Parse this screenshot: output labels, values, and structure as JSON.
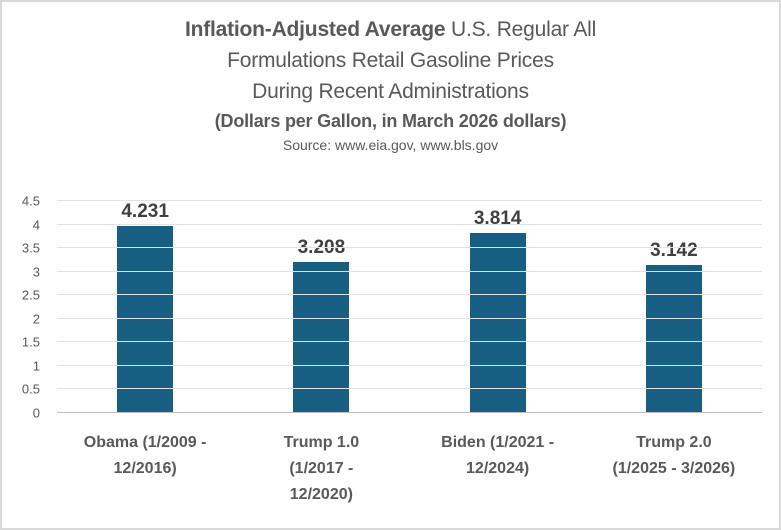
{
  "window": {
    "background": "#FFFFFF",
    "border_color": "#D9D9D9"
  },
  "title": {
    "line1_bold": "Inflation-Adjusted Average",
    "line1_rest": " U.S. Regular All",
    "line2": "Formulations Retail Gasoline Prices",
    "line3": "During Recent Administrations",
    "subtitle": "(Dollars per Gallon, in March 2026 dollars)",
    "source": "Source: www.eia.gov, www.bls.gov"
  },
  "chart_data": {
    "type": "bar",
    "title": "Inflation-Adjusted Average U.S. Regular All Formulations Retail Gasoline Prices During Recent Administrations",
    "subtitle": "(Dollars per Gallon, in March 2026 dollars)",
    "source": "Source: www.eia.gov, www.bls.gov",
    "categories": [
      "Obama (1/2009 - 12/2016)",
      "Trump 1.0 (1/2017 - 12/2020)",
      "Biden (1/2021 - 12/2024)",
      "Trump 2.0 (1/2025 - 3/2026)"
    ],
    "category_label_lines": [
      [
        "Obama (1/2009 -",
        "12/2016)"
      ],
      [
        "Trump 1.0",
        "(1/2017 -",
        "12/2020)"
      ],
      [
        "Biden (1/2021 -",
        "12/2024)"
      ],
      [
        "Trump 2.0",
        "(1/2025 - 3/2026)"
      ]
    ],
    "values": [
      4.231,
      3.208,
      3.814,
      3.142
    ],
    "data_labels": [
      "4.231",
      "3.208",
      "3.814",
      "3.142"
    ],
    "xlabel": "",
    "ylabel": "",
    "ylim": [
      0,
      4.5
    ],
    "ytick_values": [
      0,
      0.5,
      1,
      1.5,
      2,
      2.5,
      3,
      3.5,
      4,
      4.5
    ],
    "ytick_labels": [
      "0",
      "0.5",
      "1",
      "1.5",
      "2",
      "2.5",
      "3",
      "3.5",
      "4",
      "4.5"
    ],
    "grid": true,
    "legend": "none",
    "colors": {
      "bar": "#175F82",
      "gridline": "#E2E2E2",
      "axis_line": "#BFBFBF",
      "title_text": "#595959",
      "data_label_text": "#404040",
      "tick_text": "#595959"
    }
  }
}
